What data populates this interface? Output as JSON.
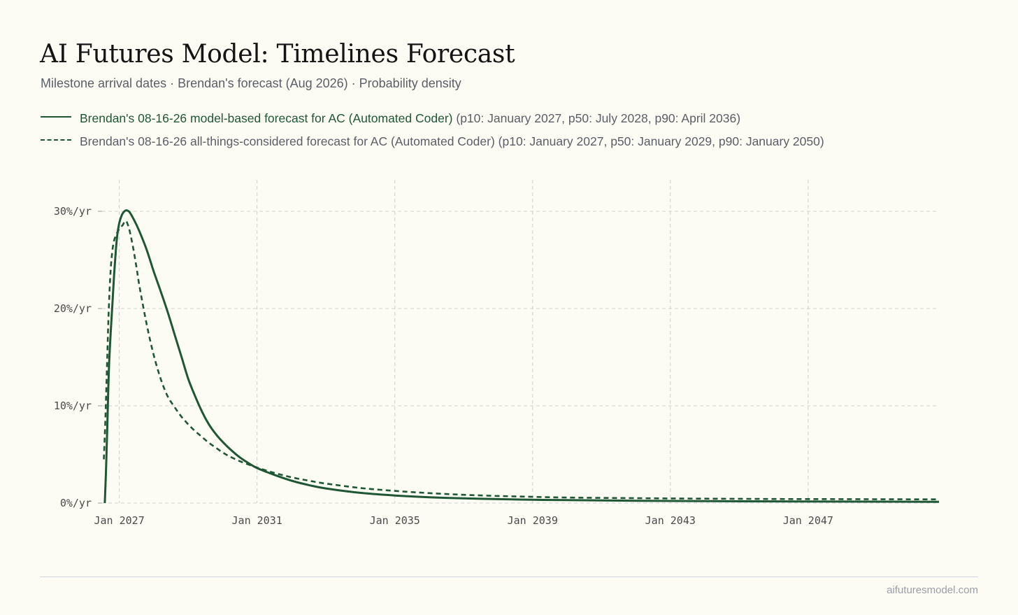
{
  "title": "AI Futures Model: Timelines Forecast",
  "subtitle": "Milestone arrival dates · Brendan's forecast (Aug 2026) · Probability density",
  "legend": [
    {
      "name": "Brendan's 08-16-26 model-based forecast for AC (Automated Coder)",
      "stats": "(p10: January 2027, p50: July 2028, p90: April 2036)",
      "style": "solid"
    },
    {
      "name": "Brendan's 08-16-26 all-things-considered forecast for AC (Automated Coder)",
      "stats": "(p10: January 2027, p50: January 2029, p90: January 2050)",
      "style": "dashed"
    }
  ],
  "footer": {
    "site": "aifuturesmodel.com"
  },
  "colors": {
    "series": "#1f5636",
    "grid": "#cfcfcf",
    "background": "#fdfcf4"
  },
  "chart_data": {
    "type": "line",
    "grid": true,
    "legend_position": "top-left",
    "x_unit": "year",
    "y_unit": "%/yr",
    "xlim": [
      2026.5,
      2050.8
    ],
    "ylim": [
      0,
      30
    ],
    "x_ticks": [
      {
        "value": 2027,
        "label": "Jan 2027"
      },
      {
        "value": 2031,
        "label": "Jan 2031"
      },
      {
        "value": 2035,
        "label": "Jan 2035"
      },
      {
        "value": 2039,
        "label": "Jan 2039"
      },
      {
        "value": 2043,
        "label": "Jan 2043"
      },
      {
        "value": 2047,
        "label": "Jan 2047"
      }
    ],
    "y_ticks": [
      {
        "value": 0,
        "label": "0%/yr"
      },
      {
        "value": 10,
        "label": "10%/yr"
      },
      {
        "value": 20,
        "label": "20%/yr"
      },
      {
        "value": 30,
        "label": "30%/yr"
      }
    ],
    "series": [
      {
        "style": "solid",
        "x": [
          2026.58,
          2026.62,
          2026.66,
          2026.7,
          2026.75,
          2026.8,
          2026.85,
          2026.9,
          2026.95,
          2027.0,
          2027.05,
          2027.1,
          2027.15,
          2027.2,
          2027.25,
          2027.3,
          2027.4,
          2027.5,
          2027.6,
          2027.8,
          2028.0,
          2028.2,
          2028.4,
          2028.6,
          2028.8,
          2029.0,
          2029.2,
          2029.4,
          2029.6,
          2029.8,
          2030.0,
          2030.2,
          2030.5,
          2030.8,
          2031.0,
          2031.5,
          2032.0,
          2032.5,
          2033.0,
          2034.0,
          2035.0,
          2036.0,
          2037.0,
          2038.0,
          2039.0,
          2040.0,
          2042.0,
          2044.0,
          2046.0,
          2048.0,
          2050.8
        ],
        "y": [
          0,
          4,
          9,
          14,
          17.5,
          20.5,
          23.5,
          26,
          27.8,
          28.8,
          29.4,
          29.8,
          30.0,
          30.1,
          30.05,
          29.9,
          29.3,
          28.6,
          27.8,
          26.0,
          23.8,
          21.8,
          19.7,
          17.4,
          15.1,
          12.8,
          11.0,
          9.4,
          8.1,
          7.1,
          6.3,
          5.6,
          4.7,
          4.0,
          3.6,
          2.9,
          2.3,
          1.85,
          1.5,
          1.05,
          0.78,
          0.6,
          0.48,
          0.4,
          0.34,
          0.3,
          0.24,
          0.2,
          0.17,
          0.15,
          0.13
        ]
      },
      {
        "style": "dashed",
        "x": [
          2026.55,
          2026.6,
          2026.65,
          2026.7,
          2026.75,
          2026.8,
          2026.85,
          2026.9,
          2026.95,
          2027.0,
          2027.05,
          2027.1,
          2027.15,
          2027.2,
          2027.25,
          2027.3,
          2027.4,
          2027.5,
          2027.6,
          2027.8,
          2028.0,
          2028.2,
          2028.4,
          2028.6,
          2028.8,
          2029.0,
          2029.2,
          2029.4,
          2029.6,
          2029.8,
          2030.0,
          2030.2,
          2030.5,
          2030.8,
          2031.0,
          2031.5,
          2032.0,
          2032.5,
          2033.0,
          2034.0,
          2035.0,
          2036.0,
          2037.0,
          2038.0,
          2039.0,
          2040.0,
          2042.0,
          2044.0,
          2046.0,
          2048.0,
          2050.8
        ],
        "y": [
          4.5,
          9,
          15,
          20.5,
          24,
          26,
          27.0,
          27.5,
          27.9,
          28.2,
          28.4,
          28.6,
          28.9,
          29.0,
          28.6,
          28.0,
          26.3,
          24.2,
          22.0,
          18.3,
          15.2,
          12.8,
          11.0,
          9.9,
          8.9,
          8.1,
          7.4,
          6.8,
          6.2,
          5.7,
          5.2,
          4.8,
          4.3,
          3.9,
          3.65,
          3.1,
          2.65,
          2.3,
          2.0,
          1.55,
          1.25,
          1.02,
          0.85,
          0.73,
          0.64,
          0.57,
          0.5,
          0.45,
          0.42,
          0.4,
          0.38
        ]
      }
    ]
  }
}
